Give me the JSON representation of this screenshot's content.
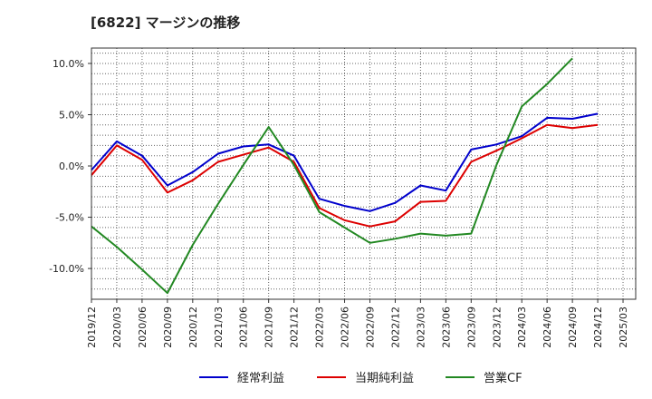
{
  "chart_data": {
    "type": "line",
    "title": "[6822]  マージンの推移",
    "x": [
      "2019/12",
      "2020/03",
      "2020/06",
      "2020/09",
      "2020/12",
      "2021/03",
      "2021/06",
      "2021/09",
      "2021/12",
      "2022/03",
      "2022/06",
      "2022/09",
      "2022/12",
      "2023/03",
      "2023/06",
      "2023/09",
      "2023/12",
      "2024/03",
      "2024/06",
      "2024/09",
      "2024/12"
    ],
    "x_ticks": [
      "2019/12",
      "2020/03",
      "2020/06",
      "2020/09",
      "2020/12",
      "2021/03",
      "2021/06",
      "2021/09",
      "2021/12",
      "2022/03",
      "2022/06",
      "2022/09",
      "2022/12",
      "2023/03",
      "2023/06",
      "2023/09",
      "2023/12",
      "2024/03",
      "2024/06",
      "2024/09",
      "2024/12",
      "2025/03"
    ],
    "y_ticks": [
      -10,
      -5,
      0,
      5,
      10
    ],
    "y_tick_labels": [
      "-10.0%",
      "-5.0%",
      "0.0%",
      "5.0%",
      "10.0%"
    ],
    "ylim": [
      -13.0,
      11.5
    ],
    "grid": true,
    "legend_position": "bottom",
    "series": [
      {
        "name": "経常利益",
        "color": "#0000cc",
        "values": [
          -0.4,
          2.4,
          1.0,
          -1.9,
          -0.6,
          1.2,
          1.9,
          2.1,
          1.0,
          -3.2,
          -3.9,
          -4.4,
          -3.6,
          -1.9,
          -2.4,
          1.6,
          2.1,
          2.9,
          4.7,
          4.6,
          5.1
        ]
      },
      {
        "name": "当期純利益",
        "color": "#dd0000",
        "values": [
          -0.9,
          2.0,
          0.6,
          -2.6,
          -1.4,
          0.4,
          1.1,
          1.8,
          0.4,
          -4.1,
          -5.3,
          -5.9,
          -5.4,
          -3.5,
          -3.4,
          0.4,
          1.5,
          2.7,
          4.0,
          3.7,
          4.0
        ]
      },
      {
        "name": "営業CF",
        "color": "#228822",
        "values": [
          -5.9,
          -7.9,
          -10.1,
          -12.4,
          -7.7,
          -3.7,
          0.1,
          3.8,
          0.1,
          -4.5,
          -6.0,
          -7.5,
          -7.1,
          -6.6,
          -6.8,
          -6.6,
          0.1,
          5.8,
          8.0,
          10.5,
          null
        ]
      }
    ]
  }
}
